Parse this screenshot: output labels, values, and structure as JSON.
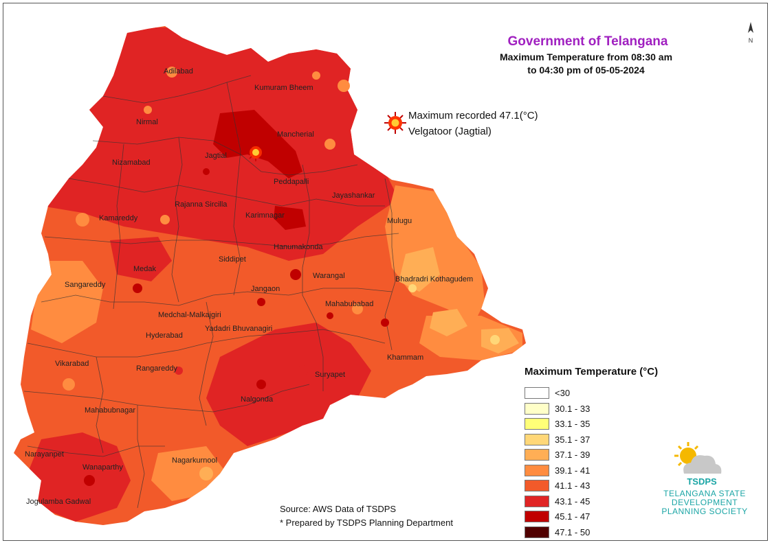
{
  "header": {
    "title": "Government of Telangana",
    "subtitle_line1": "Maximum Temperature from 08:30 am",
    "subtitle_line2": "to 04:30 pm of 05-05-2024"
  },
  "max_note": {
    "line1": "Maximum recorded 47.1(°C)",
    "line2": "Velgatoor (Jagtial)"
  },
  "legend": {
    "title": "Maximum Temperature (°C)",
    "items": [
      {
        "label": "<30",
        "color": "#ffffff"
      },
      {
        "label": "30.1 - 33",
        "color": "#ffffc8"
      },
      {
        "label": "33.1 - 35",
        "color": "#ffff78"
      },
      {
        "label": "35.1 - 37",
        "color": "#ffd778"
      },
      {
        "label": "37.1 - 39",
        "color": "#ffae55"
      },
      {
        "label": "39.1 - 41",
        "color": "#ff8c40"
      },
      {
        "label": "41.1 - 43",
        "color": "#f25a2a"
      },
      {
        "label": "43.1 - 45",
        "color": "#e02424"
      },
      {
        "label": "45.1 - 47",
        "color": "#c00000"
      },
      {
        "label": "47.1 - 50",
        "color": "#500000"
      }
    ]
  },
  "source": {
    "line1": "Source: AWS Data of TSDPS",
    "line2": "* Prepared by TSDPS Planning Department"
  },
  "logo": {
    "short": "TSDPS",
    "line1": "TELANGANA STATE",
    "line2": "DEVELOPMENT",
    "line3": "PLANNING SOCIETY"
  },
  "districts": {
    "adilabad": "Adilabad",
    "kumuram_bheem": "Kumuram Bheem",
    "nirmal": "Nirmal",
    "mancherial": "Mancherial",
    "jagtial": "Jagtial",
    "nizamabad": "Nizamabad",
    "peddapalli": "Peddapalli",
    "jayashankar": "Jayashankar",
    "rajanna_sircilla": "Rajanna Sircilla",
    "kamareddy": "Kamareddy",
    "karimnagar": "Karimnagar",
    "mulugu": "Mulugu",
    "hanumakonda": "Hanumakonda",
    "medak": "Medak",
    "siddipet": "Siddipet",
    "sangareddy": "Sangareddy",
    "warangal": "Warangal",
    "bhadradri": "Bhadradri Kothagudem",
    "jangaon": "Jangaon",
    "mahabubabad": "Mahabubabad",
    "medchal": "Medchal-Malkajgiri",
    "yadadri": "Yadadri Bhuvanagiri",
    "hyderabad": "Hyderabad",
    "khammam": "Khammam",
    "vikarabad": "Vikarabad",
    "rangareddy": "Rangareddy",
    "suryapet": "Suryapet",
    "nalgonda": "Nalgonda",
    "mahabubnagar": "Mahabubnagar",
    "narayanpet": "Narayanpet",
    "wanaparthy": "Wanaparthy",
    "nagarkurnool": "Nagarkurnool",
    "jogulamba": "Jogulamba Gadwal"
  }
}
